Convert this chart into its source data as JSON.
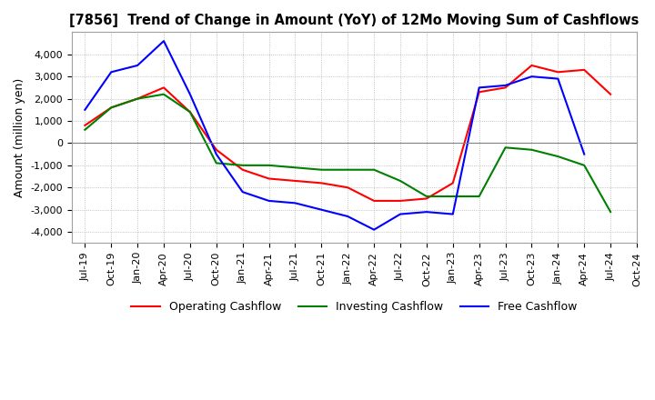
{
  "title": "[7856]  Trend of Change in Amount (YoY) of 12Mo Moving Sum of Cashflows",
  "ylabel": "Amount (million yen)",
  "ylim": [
    -4500,
    5000
  ],
  "yticks": [
    -4000,
    -3000,
    -2000,
    -1000,
    0,
    1000,
    2000,
    3000,
    4000
  ],
  "x_labels": [
    "Jul-19",
    "Oct-19",
    "Jan-20",
    "Apr-20",
    "Jul-20",
    "Oct-20",
    "Jan-21",
    "Apr-21",
    "Jul-21",
    "Oct-21",
    "Jan-22",
    "Apr-22",
    "Jul-22",
    "Oct-22",
    "Jan-23",
    "Apr-23",
    "Jul-23",
    "Oct-23",
    "Jan-24",
    "Apr-24",
    "Jul-24",
    "Oct-24"
  ],
  "operating": [
    800,
    1600,
    2000,
    2500,
    1400,
    -300,
    -1200,
    -1600,
    -1700,
    -1800,
    -2000,
    -2600,
    -2600,
    -2500,
    -1800,
    2300,
    2500,
    3500,
    3200,
    3300,
    2200,
    null
  ],
  "investing": [
    600,
    1600,
    2000,
    2200,
    1400,
    -900,
    -1000,
    -1000,
    -1100,
    -1200,
    -1200,
    -1200,
    -1700,
    -2400,
    -2400,
    -2400,
    -200,
    -300,
    -600,
    -1000,
    -3100,
    null
  ],
  "free": [
    1500,
    3200,
    3500,
    4600,
    2200,
    -500,
    -2200,
    -2600,
    -2700,
    -3000,
    -3300,
    -3900,
    -3200,
    -3100,
    -3200,
    2500,
    2600,
    3000,
    2900,
    -500,
    null,
    null
  ],
  "operating_color": "#ff0000",
  "investing_color": "#008000",
  "free_color": "#0000ff",
  "background_color": "#ffffff",
  "grid_color": "#b0b0b0"
}
